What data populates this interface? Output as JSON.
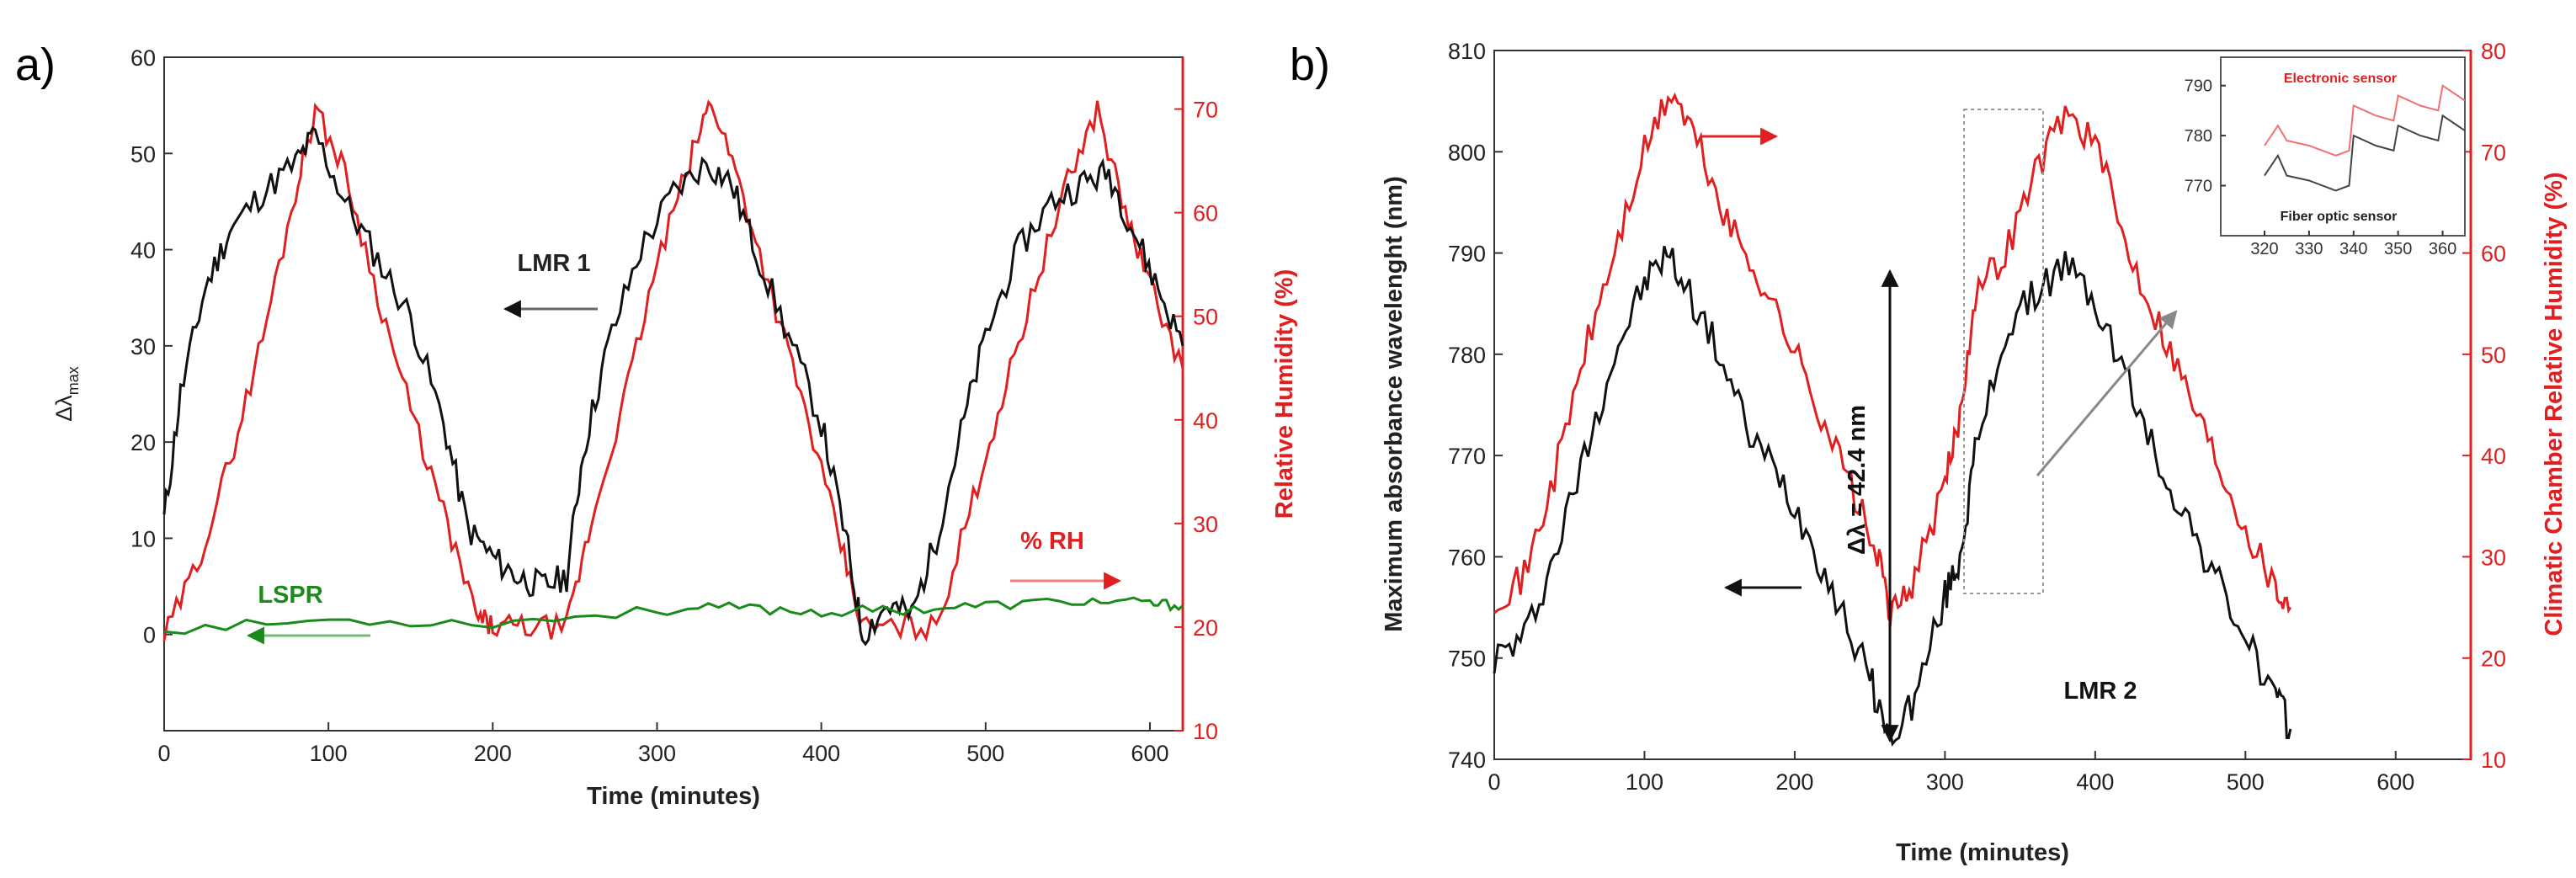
{
  "chart_data": [
    {
      "panel_label": "a)",
      "type": "line",
      "xlabel": "Time (minutes)",
      "ylabel": "Δλmax",
      "ylabel_main": "Δλ",
      "ylabel_sub": "max",
      "y2label": "Relative Humidity (%)",
      "xlim": [
        0,
        620
      ],
      "ylim": [
        -10,
        60
      ],
      "y2lim": [
        10,
        75
      ],
      "xticks": [
        "0",
        "100",
        "200",
        "300",
        "400",
        "500",
        "600"
      ],
      "yticks": [
        "0",
        "10",
        "20",
        "30",
        "40",
        "50",
        "60"
      ],
      "y2ticks": [
        "10",
        "20",
        "30",
        "40",
        "50",
        "60",
        "70"
      ],
      "annotations": [
        "LMR 1",
        "% RH",
        "LSPR"
      ],
      "series": [
        {
          "name": "LMR 1",
          "axis": "left",
          "color": "#111111",
          "x": [
            0,
            10,
            25,
            40,
            60,
            80,
            92,
            110,
            130,
            150,
            170,
            185,
            200,
            215,
            230,
            245,
            255,
            270,
            290,
            310,
            330,
            345,
            360,
            380,
            400,
            415,
            425,
            440,
            455,
            470,
            485,
            500,
            520,
            540,
            560,
            575,
            590,
            605,
            620
          ],
          "values": [
            12,
            25,
            36,
            42,
            46,
            49,
            52,
            45,
            39,
            33,
            22,
            11,
            8,
            6,
            5,
            6,
            19,
            30,
            40,
            46,
            49,
            47,
            40,
            31,
            22,
            10,
            0,
            3,
            2,
            10,
            21,
            31,
            40,
            45,
            47,
            48,
            42,
            36,
            30
          ]
        },
        {
          "name": "% RH",
          "axis": "right",
          "color": "#e02020",
          "x": [
            0,
            20,
            40,
            60,
            80,
            92,
            110,
            130,
            150,
            170,
            190,
            200,
            220,
            245,
            260,
            280,
            300,
            320,
            333,
            350,
            370,
            390,
            410,
            425,
            445,
            470,
            490,
            510,
            530,
            550,
            568,
            585,
            600,
            620
          ],
          "values": [
            19,
            26,
            36,
            48,
            62,
            70,
            64,
            52,
            41,
            31,
            21,
            20,
            20,
            20,
            30,
            42,
            55,
            65,
            71,
            63,
            52,
            41,
            29,
            20,
            20,
            20,
            31,
            42,
            53,
            63,
            70,
            60,
            53,
            45
          ]
        },
        {
          "name": "LSPR",
          "axis": "left",
          "color": "#1a8a1a",
          "x": [
            0,
            100,
            200,
            300,
            350,
            400,
            450,
            500,
            560,
            600,
            620
          ],
          "values": [
            0.5,
            1.5,
            1.2,
            2.5,
            2.8,
            2.3,
            2.6,
            3.0,
            3.5,
            3.2,
            3.0
          ]
        }
      ]
    },
    {
      "panel_label": "b)",
      "type": "line",
      "xlabel": "Time (minutes)",
      "ylabel": "Maximum absorbance wavelenght (nm)",
      "y2label": "Climatic Chamber Relative Humidity (%)",
      "xlim": [
        0,
        650
      ],
      "ylim": [
        740,
        810
      ],
      "y2lim": [
        10,
        80
      ],
      "xticks": [
        "0",
        "100",
        "200",
        "300",
        "400",
        "500",
        "600"
      ],
      "yticks": [
        "740",
        "750",
        "760",
        "770",
        "780",
        "790",
        "800",
        "810"
      ],
      "y2ticks": [
        "10",
        "20",
        "30",
        "40",
        "50",
        "60",
        "70",
        "80"
      ],
      "annotations": [
        "Δλ = 42.4 nm",
        "LMR 2"
      ],
      "series": [
        {
          "name": "Fiber optic sensor",
          "axis": "left",
          "color": "#111111",
          "x": [
            0,
            20,
            40,
            60,
            80,
            100,
            115,
            130,
            150,
            170,
            190,
            210,
            230,
            250,
            263,
            280,
            300,
            310,
            320,
            340,
            360,
            380,
            400,
            420,
            440,
            460,
            480,
            500,
            520,
            530
          ],
          "values": [
            750,
            752,
            760,
            770,
            780,
            787,
            790,
            786,
            780,
            772,
            768,
            762,
            755,
            748,
            742,
            746,
            756,
            760,
            770,
            782,
            786,
            789,
            785,
            778,
            770,
            764,
            758,
            752,
            746,
            743
          ]
        },
        {
          "name": "Electronic sensor",
          "axis": "right",
          "color": "#e02020",
          "x": [
            0,
            20,
            40,
            60,
            80,
            100,
            118,
            135,
            155,
            175,
            195,
            215,
            235,
            255,
            265,
            280,
            300,
            310,
            320,
            340,
            360,
            380,
            400,
            420,
            440,
            460,
            480,
            500,
            520,
            530
          ],
          "values": [
            26,
            28,
            38,
            50,
            60,
            70,
            76,
            71,
            63,
            58,
            52,
            45,
            38,
            30,
            24,
            28,
            37,
            44,
            56,
            60,
            68,
            74,
            71,
            61,
            54,
            47,
            40,
            33,
            27,
            25
          ]
        }
      ],
      "inset": {
        "xticks": [
          "320",
          "330",
          "340",
          "350",
          "360"
        ],
        "yticks": [
          "770",
          "780",
          "790"
        ],
        "xlim": [
          320,
          365
        ],
        "ylim": [
          762,
          795
        ],
        "labels": {
          "electronic": "Electronic sensor",
          "fiber": "Fiber optic sensor"
        },
        "series": [
          {
            "name": "Electronic sensor",
            "color": "#f07070",
            "x": [
              320,
              323,
              325,
              330,
              336,
              339,
              340,
              345,
              349,
              350,
              355,
              359,
              360,
              365
            ],
            "values": [
              778,
              782,
              779,
              778,
              776,
              777,
              786,
              784,
              783,
              788,
              786,
              785,
              790,
              787
            ]
          },
          {
            "name": "Fiber optic sensor",
            "color": "#444444",
            "x": [
              320,
              323,
              325,
              330,
              336,
              339,
              340,
              345,
              349,
              350,
              355,
              359,
              360,
              365
            ],
            "values": [
              772,
              776,
              772,
              771,
              769,
              770,
              780,
              778,
              777,
              782,
              780,
              779,
              784,
              781
            ]
          }
        ]
      }
    }
  ]
}
